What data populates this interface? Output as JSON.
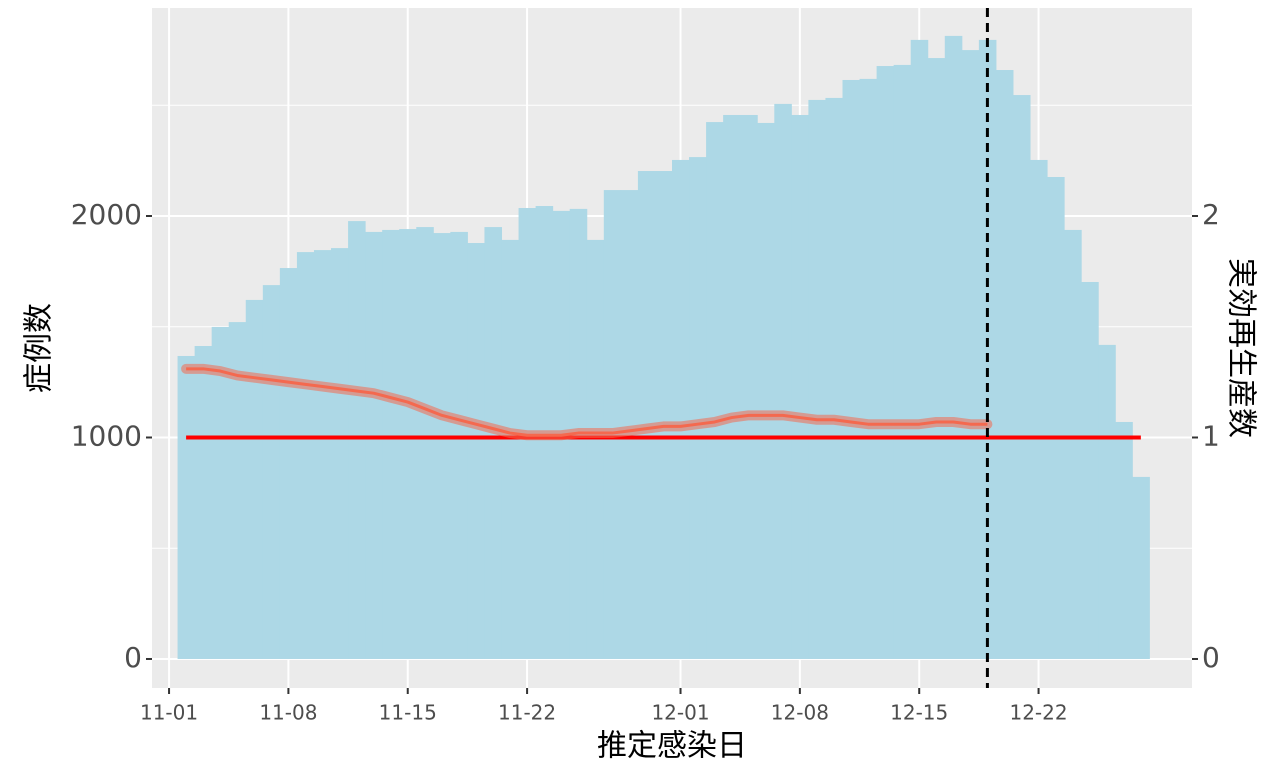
{
  "chart_data": {
    "type": "bar",
    "y_label": "症例数",
    "y2_label": "実効再生産数",
    "x_label": "推定感染日",
    "x": [
      "11-02",
      "11-03",
      "11-04",
      "11-05",
      "11-06",
      "11-07",
      "11-08",
      "11-09",
      "11-10",
      "11-11",
      "11-12",
      "11-13",
      "11-14",
      "11-15",
      "11-16",
      "11-17",
      "11-18",
      "11-19",
      "11-20",
      "11-21",
      "11-22",
      "11-23",
      "11-24",
      "11-25",
      "11-26",
      "11-27",
      "11-28",
      "11-29",
      "11-30",
      "12-01",
      "12-02",
      "12-03",
      "12-04",
      "12-05",
      "12-06",
      "12-07",
      "12-08",
      "12-09",
      "12-10",
      "12-11",
      "12-12",
      "12-13",
      "12-14",
      "12-15",
      "12-16",
      "12-17",
      "12-18",
      "12-19",
      "12-20",
      "12-21",
      "12-22",
      "12-23",
      "12-24",
      "12-25",
      "12-26",
      "12-27",
      "12-28"
    ],
    "series": [
      {
        "name": "症例数",
        "color": "#add8e6",
        "values": [
          1368,
          1413,
          1499,
          1521,
          1621,
          1688,
          1765,
          1837,
          1846,
          1855,
          1977,
          1928,
          1937,
          1941,
          1950,
          1923,
          1928,
          1878,
          1950,
          1892,
          2036,
          2045,
          2023,
          2032,
          1892,
          2117,
          2117,
          2203,
          2203,
          2253,
          2266,
          2424,
          2456,
          2456,
          2420,
          2506,
          2456,
          2524,
          2533,
          2614,
          2619,
          2677,
          2682,
          2795,
          2713,
          2813,
          2749,
          2795,
          2659,
          2546,
          2253,
          2176,
          1937,
          1702,
          1418,
          1070,
          822
        ]
      },
      {
        "name": "実効再生産数",
        "type": "line",
        "axis": "y2",
        "color": "#f4694f",
        "x": [
          "11-02",
          "11-03",
          "11-04",
          "11-05",
          "11-06",
          "11-07",
          "11-08",
          "11-09",
          "11-10",
          "11-11",
          "11-12",
          "11-13",
          "11-14",
          "11-15",
          "11-16",
          "11-17",
          "11-18",
          "11-19",
          "11-20",
          "11-21",
          "11-22",
          "11-23",
          "11-24",
          "11-25",
          "11-26",
          "11-27",
          "11-28",
          "11-29",
          "11-30",
          "12-01",
          "12-02",
          "12-03",
          "12-04",
          "12-05",
          "12-06",
          "12-07",
          "12-08",
          "12-09",
          "12-10",
          "12-11",
          "12-12",
          "12-13",
          "12-14",
          "12-15",
          "12-16",
          "12-17",
          "12-18",
          "12-19"
        ],
        "values": [
          1.31,
          1.31,
          1.3,
          1.28,
          1.27,
          1.26,
          1.25,
          1.24,
          1.23,
          1.22,
          1.21,
          1.2,
          1.18,
          1.16,
          1.13,
          1.1,
          1.08,
          1.06,
          1.04,
          1.02,
          1.01,
          1.01,
          1.01,
          1.02,
          1.02,
          1.02,
          1.03,
          1.04,
          1.05,
          1.05,
          1.06,
          1.07,
          1.09,
          1.1,
          1.1,
          1.1,
          1.09,
          1.08,
          1.08,
          1.07,
          1.06,
          1.06,
          1.06,
          1.06,
          1.07,
          1.07,
          1.06,
          1.06
        ]
      }
    ],
    "hline": {
      "value": 1,
      "axis": "y2",
      "color": "#ff0000"
    },
    "vline": {
      "x": "12-19",
      "color": "#000000",
      "dashed": true
    },
    "xticks": [
      "11-01",
      "11-08",
      "11-15",
      "11-22",
      "12-01",
      "12-08",
      "12-15",
      "12-22"
    ],
    "xlim": [
      "10-30",
      "12-31"
    ],
    "ylim": [
      -131,
      2939
    ],
    "yticks": [
      0,
      1000,
      2000
    ],
    "yminor": [
      500,
      1500,
      2500
    ],
    "y2lim": [
      -0.131,
      2.939
    ],
    "y2ticks": [
      0,
      1,
      2
    ],
    "grid": true
  }
}
